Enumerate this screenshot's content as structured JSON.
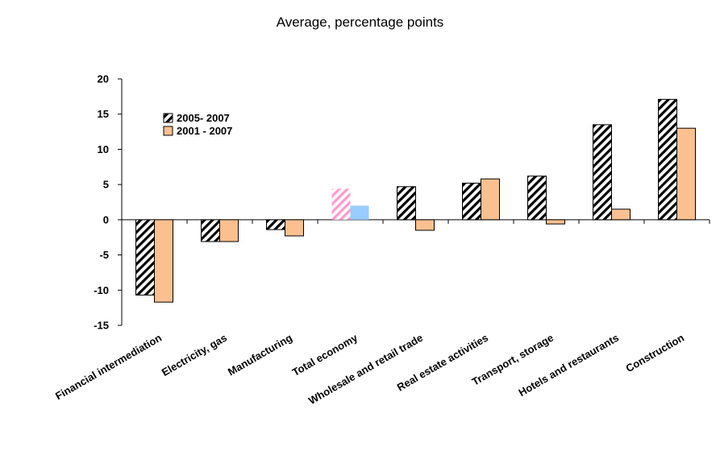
{
  "chart_data": {
    "type": "bar",
    "title": "Average, percentage points",
    "xlabel": "",
    "ylabel": "",
    "ylim": [
      -15,
      20
    ],
    "yticks": [
      20,
      15,
      10,
      5,
      0,
      -5,
      -10,
      -15
    ],
    "grid": false,
    "legend_position": "top-left",
    "categories": [
      "Financial intermediation",
      "Electricity, gas",
      "Manufacturing",
      "Total economy",
      "Wholesale and retail trade",
      "Real estate activities",
      "Transport, storage",
      "Hotels and restaurants",
      "Construction"
    ],
    "series": [
      {
        "name": "2005- 2007",
        "values": [
          -10.7,
          -3.1,
          -1.4,
          4.4,
          4.7,
          5.2,
          6.2,
          13.5,
          17.1
        ]
      },
      {
        "name": "2001 - 2007",
        "values": [
          -11.7,
          -3.1,
          -2.3,
          2.0,
          -1.5,
          5.8,
          -0.6,
          1.5,
          13.0
        ]
      }
    ],
    "colors": {
      "series1_fill": "#ffffff",
      "series1_hatch": "#000000",
      "series2_fill": "#fac090",
      "highlight_series1_hatch": "#ff99cc",
      "highlight_series2_fill": "#99ccff",
      "axis": "#000000"
    },
    "highlight_category": "Total economy"
  }
}
